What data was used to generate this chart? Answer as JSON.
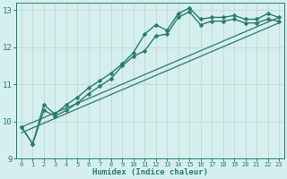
{
  "xlabel": "Humidex (Indice chaleur)",
  "ylabel": "",
  "bg_color": "#d5efee",
  "grid_color": "#c0d8d6",
  "line_color": "#2a7a6a",
  "xlim": [
    -0.5,
    23.5
  ],
  "ylim": [
    9,
    13.2
  ],
  "yticks": [
    9,
    10,
    11,
    12,
    13
  ],
  "xticks": [
    0,
    1,
    2,
    3,
    4,
    5,
    6,
    7,
    8,
    9,
    10,
    11,
    12,
    13,
    14,
    15,
    16,
    17,
    18,
    19,
    20,
    21,
    22,
    23
  ],
  "series": [
    {
      "x": [
        0,
        1,
        2,
        3,
        4,
        5,
        6,
        7,
        8,
        9,
        10,
        11,
        12,
        13,
        14,
        15,
        16,
        17,
        18,
        19,
        20,
        21,
        22,
        23
      ],
      "y": [
        9.85,
        9.4,
        10.45,
        10.2,
        10.45,
        10.65,
        10.9,
        11.1,
        11.3,
        11.55,
        11.85,
        12.35,
        12.6,
        12.45,
        12.9,
        13.05,
        12.75,
        12.8,
        12.8,
        12.85,
        12.75,
        12.75,
        12.9,
        12.8
      ],
      "marker": "D",
      "linewidth": 1.0,
      "markersize": 2.5
    },
    {
      "x": [
        0,
        1,
        2,
        3,
        4,
        5,
        6,
        7,
        8,
        9,
        10,
        11,
        12,
        13,
        14,
        15,
        16,
        17,
        18,
        19,
        20,
        21,
        22,
        23
      ],
      "y": [
        9.85,
        9.4,
        10.3,
        10.15,
        10.3,
        10.5,
        10.75,
        10.95,
        11.15,
        11.5,
        11.75,
        11.9,
        12.3,
        12.35,
        12.8,
        12.95,
        12.6,
        12.7,
        12.7,
        12.75,
        12.65,
        12.65,
        12.75,
        12.7
      ],
      "marker": "D",
      "linewidth": 1.0,
      "markersize": 2.5
    },
    {
      "x": [
        0,
        23
      ],
      "y": [
        9.85,
        12.8
      ],
      "marker": null,
      "linewidth": 0.9
    },
    {
      "x": [
        0,
        23
      ],
      "y": [
        9.7,
        12.65
      ],
      "marker": null,
      "linewidth": 0.9
    }
  ]
}
